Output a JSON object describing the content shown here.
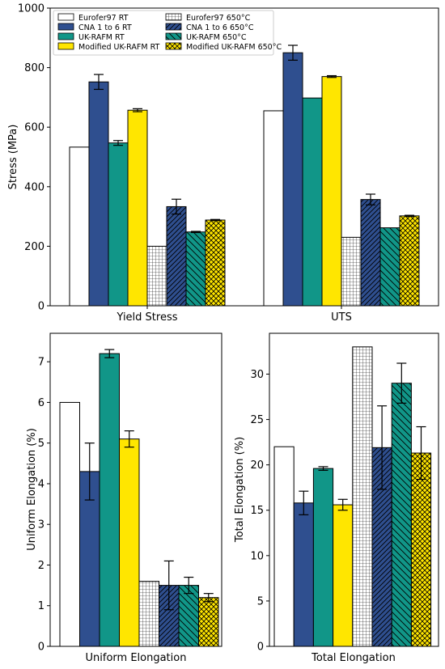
{
  "legend": {
    "placement": "top-left",
    "entries": [
      {
        "label": "Eurofer97 RT",
        "color": "#ffffff",
        "hatch": "none"
      },
      {
        "label": "CNA 1 to 6 RT",
        "color": "#2f4f8f",
        "hatch": "none"
      },
      {
        "label": "UK-RAFM RT",
        "color": "#119688",
        "hatch": "none"
      },
      {
        "label": "Modified UK-RAFM RT",
        "color": "#ffe600",
        "hatch": "none"
      },
      {
        "label": "Eurofer97 650°C",
        "color": "#ffffff",
        "hatch": "grid"
      },
      {
        "label": "CNA 1 to 6 650°C",
        "color": "#2f4f8f",
        "hatch": "diag"
      },
      {
        "label": "UK-RAFM 650°C",
        "color": "#119688",
        "hatch": "backdiag"
      },
      {
        "label": "Modified UK-RAFM 650°C",
        "color": "#ffe600",
        "hatch": "cross"
      }
    ]
  },
  "chart_data": [
    {
      "type": "bar",
      "ylabel": "Stress (MPa)",
      "ylim": [
        0,
        1000
      ],
      "yticks": [
        "0",
        "200",
        "400",
        "600",
        "800",
        "1000"
      ],
      "categories": [
        "Yield Stress",
        "UTS"
      ],
      "series": [
        {
          "name": "Eurofer97 RT",
          "values": [
            533,
            655
          ],
          "errors": [
            0,
            0
          ]
        },
        {
          "name": "CNA 1 to 6 RT",
          "values": [
            752,
            850
          ],
          "errors": [
            25,
            25
          ]
        },
        {
          "name": "UK-RAFM RT",
          "values": [
            547,
            698
          ],
          "errors": [
            8,
            0
          ]
        },
        {
          "name": "Modified UK-RAFM RT",
          "values": [
            657,
            770
          ],
          "errors": [
            5,
            3
          ]
        },
        {
          "name": "Eurofer97 650°C",
          "values": [
            200,
            230
          ],
          "errors": [
            0,
            0
          ]
        },
        {
          "name": "CNA 1 to 6 650°C",
          "values": [
            333,
            357
          ],
          "errors": [
            25,
            18
          ]
        },
        {
          "name": "UK-RAFM 650°C",
          "values": [
            248,
            262
          ],
          "errors": [
            2,
            0
          ]
        },
        {
          "name": "Modified UK-RAFM 650°C",
          "values": [
            288,
            302
          ],
          "errors": [
            2,
            2
          ]
        }
      ]
    },
    {
      "type": "bar",
      "ylabel": "Uniform Elongation (%)",
      "xlabel": "Uniform Elongation",
      "ylim": [
        0,
        7.7
      ],
      "yticks": [
        "0",
        "1",
        "2",
        "3",
        "4",
        "5",
        "6",
        "7"
      ],
      "series": [
        {
          "name": "Eurofer97 RT",
          "values": [
            6.0
          ],
          "errors": [
            0
          ]
        },
        {
          "name": "CNA 1 to 6 RT",
          "values": [
            4.3
          ],
          "errors": [
            0.7
          ]
        },
        {
          "name": "UK-RAFM RT",
          "values": [
            7.2
          ],
          "errors": [
            0.1
          ]
        },
        {
          "name": "Modified UK-RAFM RT",
          "values": [
            5.1
          ],
          "errors": [
            0.2
          ]
        },
        {
          "name": "Eurofer97 650°C",
          "values": [
            1.6
          ],
          "errors": [
            0
          ]
        },
        {
          "name": "CNA 1 to 6 650°C",
          "values": [
            1.5
          ],
          "errors": [
            0.6
          ]
        },
        {
          "name": "UK-RAFM 650°C",
          "values": [
            1.5
          ],
          "errors": [
            0.2
          ]
        },
        {
          "name": "Modified UK-RAFM 650°C",
          "values": [
            1.2
          ],
          "errors": [
            0.1
          ]
        }
      ]
    },
    {
      "type": "bar",
      "ylabel": "Total Elongation (%)",
      "xlabel": "Total Elongation",
      "ylim": [
        0,
        34.5
      ],
      "yticks": [
        "0",
        "5",
        "10",
        "15",
        "20",
        "25",
        "30"
      ],
      "series": [
        {
          "name": "Eurofer97 RT",
          "values": [
            22.0
          ],
          "errors": [
            0
          ]
        },
        {
          "name": "CNA 1 to 6 RT",
          "values": [
            15.8
          ],
          "errors": [
            1.3
          ]
        },
        {
          "name": "UK-RAFM RT",
          "values": [
            19.6
          ],
          "errors": [
            0.2
          ]
        },
        {
          "name": "Modified UK-RAFM RT",
          "values": [
            15.6
          ],
          "errors": [
            0.6
          ]
        },
        {
          "name": "Eurofer97 650°C",
          "values": [
            33.0
          ],
          "errors": [
            0
          ]
        },
        {
          "name": "CNA 1 to 6 650°C",
          "values": [
            21.9
          ],
          "errors": [
            4.6
          ]
        },
        {
          "name": "UK-RAFM 650°C",
          "values": [
            29.0
          ],
          "errors": [
            2.2
          ]
        },
        {
          "name": "Modified UK-RAFM 650°C",
          "values": [
            21.3
          ],
          "errors": [
            2.9
          ]
        }
      ]
    }
  ]
}
